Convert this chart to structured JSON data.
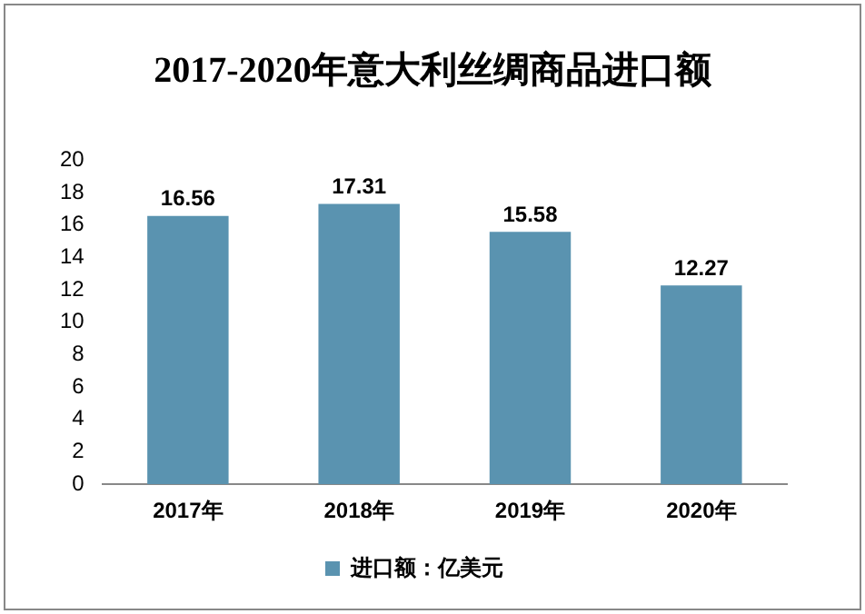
{
  "chart_data": {
    "type": "bar",
    "title": "2017-2020年意大利丝绸商品进口额",
    "categories": [
      "2017年",
      "2018年",
      "2019年",
      "2020年"
    ],
    "series": [
      {
        "name": "进口额：亿美元",
        "color": "#5a93b0",
        "values": [
          16.56,
          17.31,
          15.58,
          12.27
        ]
      }
    ],
    "ylim": [
      0,
      20
    ],
    "yticks": [
      0,
      2,
      4,
      6,
      8,
      10,
      12,
      14,
      16,
      18,
      20
    ],
    "grid": false,
    "legend": "bottom",
    "data_labels": true
  }
}
